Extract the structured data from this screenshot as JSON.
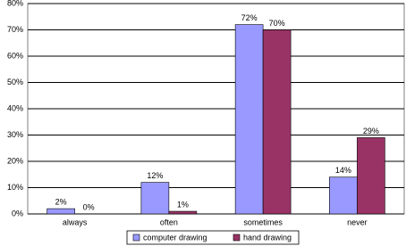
{
  "chart_data": {
    "type": "bar",
    "categories": [
      "always",
      "often",
      "sometimes",
      "never"
    ],
    "series": [
      {
        "name": "computer drawing",
        "color": "#9999ff",
        "values": [
          2,
          12,
          72,
          14
        ],
        "value_labels": [
          "2%",
          "12%",
          "72%",
          "14%"
        ]
      },
      {
        "name": "hand drawing",
        "color": "#993366",
        "values": [
          0,
          1,
          70,
          29
        ],
        "value_labels": [
          "0%",
          "1%",
          "70%",
          "29%"
        ]
      }
    ],
    "ylim": [
      0,
      80
    ],
    "yticks": [
      {
        "value": 0,
        "label": "0%"
      },
      {
        "value": 10,
        "label": "10%"
      },
      {
        "value": 20,
        "label": "20%"
      },
      {
        "value": 30,
        "label": "30%"
      },
      {
        "value": 40,
        "label": "40%"
      },
      {
        "value": 50,
        "label": "50%"
      },
      {
        "value": 60,
        "label": "60%"
      },
      {
        "value": 70,
        "label": "70%"
      },
      {
        "value": 80,
        "label": "80%"
      }
    ],
    "grid": true,
    "legend": "bottom"
  }
}
